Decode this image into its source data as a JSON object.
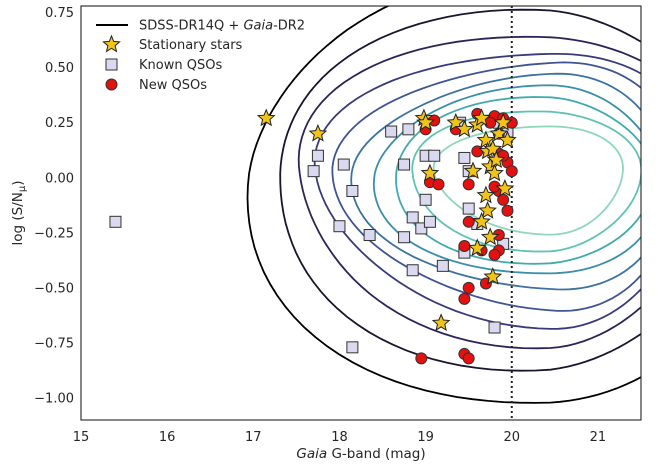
{
  "chart_data": {
    "type": "scatter",
    "xlabel": {
      "italic": "Gaia",
      "rest": " G-band (mag)"
    },
    "ylabel": {
      "main": "log (S/N",
      "sub": "μ",
      "end": ")"
    },
    "xlim": [
      15.0,
      21.5
    ],
    "ylim": [
      -1.1,
      0.78
    ],
    "x_ticks": [
      15,
      16,
      17,
      18,
      19,
      20,
      21
    ],
    "y_ticks": [
      0.75,
      0.5,
      0.25,
      0.0,
      -0.25,
      -0.5,
      -0.75,
      -1.0
    ],
    "x_tick_labels": [
      "15",
      "16",
      "17",
      "18",
      "19",
      "20",
      "21"
    ],
    "y_tick_labels": [
      "0.75",
      "0.50",
      "0.25",
      "0.00",
      "−0.25",
      "−0.50",
      "−0.75",
      "−1.00"
    ],
    "vline": {
      "x": 20.0,
      "style": "dotted"
    },
    "grid": false,
    "legend": {
      "placement": "top-left",
      "entries": [
        {
          "parts": [
            "SDSS-DR14Q + ",
            "Gaia",
            "-DR2"
          ],
          "marker": "line"
        },
        {
          "parts": [
            "Stationary stars"
          ],
          "marker": "star"
        },
        {
          "parts": [
            "Known QSOs"
          ],
          "marker": "square"
        },
        {
          "parts": [
            "New QSOs"
          ],
          "marker": "circle"
        }
      ]
    },
    "contours": {
      "center": [
        20.45,
        0.02
      ],
      "levels": [
        {
          "rx": 1.35,
          "ry": 0.24,
          "color": "#8ed7bb"
        },
        {
          "rx": 1.65,
          "ry": 0.31,
          "color": "#5fc3b4"
        },
        {
          "rx": 1.85,
          "ry": 0.37,
          "color": "#40aaae"
        },
        {
          "rx": 2.05,
          "ry": 0.42,
          "color": "#3a8fa9"
        },
        {
          "rx": 2.25,
          "ry": 0.48,
          "color": "#3d72a0"
        },
        {
          "rx": 2.45,
          "ry": 0.55,
          "color": "#3f5593"
        },
        {
          "rx": 2.7,
          "ry": 0.61,
          "color": "#3a3a7a"
        },
        {
          "rx": 2.98,
          "ry": 0.69,
          "color": "#2c2457"
        },
        {
          "rx": 3.25,
          "ry": 0.8,
          "color": "#1a1430"
        },
        {
          "rx": 3.55,
          "ry": 0.96,
          "color": "#000000"
        }
      ]
    },
    "series": [
      {
        "name": "Stationary stars",
        "marker": "star",
        "color": "#f2c418",
        "points": [
          [
            17.15,
            0.27
          ],
          [
            17.75,
            0.2
          ],
          [
            18.98,
            0.27
          ],
          [
            19.0,
            0.25
          ],
          [
            19.05,
            0.02
          ],
          [
            19.35,
            0.25
          ],
          [
            19.45,
            0.22
          ],
          [
            19.55,
            0.03
          ],
          [
            19.6,
            0.24
          ],
          [
            19.65,
            0.27
          ],
          [
            19.7,
            0.17
          ],
          [
            19.72,
            0.12
          ],
          [
            19.75,
            0.05
          ],
          [
            19.78,
            0.13
          ],
          [
            19.8,
            0.02
          ],
          [
            19.85,
            0.2
          ],
          [
            19.9,
            0.25
          ],
          [
            19.95,
            0.17
          ],
          [
            19.7,
            -0.08
          ],
          [
            19.72,
            -0.15
          ],
          [
            19.65,
            -0.2
          ],
          [
            19.75,
            -0.27
          ],
          [
            19.6,
            -0.32
          ],
          [
            19.78,
            -0.45
          ],
          [
            19.18,
            -0.66
          ],
          [
            19.82,
            0.08
          ],
          [
            19.92,
            -0.05
          ]
        ]
      },
      {
        "name": "Known QSOs",
        "marker": "square",
        "color": "#dad9ef",
        "points": [
          [
            15.4,
            -0.2
          ],
          [
            17.7,
            0.03
          ],
          [
            17.75,
            0.1
          ],
          [
            18.05,
            0.06
          ],
          [
            18.15,
            -0.06
          ],
          [
            18.0,
            -0.22
          ],
          [
            18.35,
            -0.26
          ],
          [
            18.15,
            -0.77
          ],
          [
            18.6,
            0.21
          ],
          [
            18.75,
            0.06
          ],
          [
            18.8,
            0.22
          ],
          [
            18.75,
            -0.27
          ],
          [
            18.85,
            -0.18
          ],
          [
            18.95,
            -0.23
          ],
          [
            18.85,
            -0.42
          ],
          [
            19.0,
            0.1
          ],
          [
            19.1,
            0.1
          ],
          [
            19.0,
            -0.1
          ],
          [
            19.05,
            -0.2
          ],
          [
            19.2,
            -0.4
          ],
          [
            19.45,
            0.09
          ],
          [
            19.5,
            0.03
          ],
          [
            19.5,
            -0.14
          ],
          [
            19.6,
            -0.21
          ],
          [
            19.45,
            -0.34
          ],
          [
            19.8,
            -0.68
          ],
          [
            19.9,
            -0.3
          ],
          [
            19.95,
            0.21
          ],
          [
            19.85,
            0.25
          ],
          [
            19.4,
            0.25
          ]
        ]
      },
      {
        "name": "New QSOs",
        "marker": "circle",
        "color": "#e51010",
        "points": [
          [
            19.0,
            0.22
          ],
          [
            19.1,
            0.26
          ],
          [
            19.05,
            -0.02
          ],
          [
            19.15,
            -0.03
          ],
          [
            19.35,
            0.22
          ],
          [
            19.5,
            -0.03
          ],
          [
            19.5,
            -0.2
          ],
          [
            19.45,
            -0.31
          ],
          [
            19.5,
            -0.5
          ],
          [
            19.45,
            -0.55
          ],
          [
            18.95,
            -0.82
          ],
          [
            19.45,
            -0.8
          ],
          [
            19.5,
            -0.82
          ],
          [
            19.6,
            0.29
          ],
          [
            19.6,
            0.12
          ],
          [
            19.65,
            -0.33
          ],
          [
            19.7,
            -0.48
          ],
          [
            19.8,
            0.28
          ],
          [
            19.85,
            0.2
          ],
          [
            19.9,
            0.27
          ],
          [
            19.85,
            0.11
          ],
          [
            19.95,
            0.07
          ],
          [
            20.0,
            0.03
          ],
          [
            19.85,
            -0.06
          ],
          [
            19.9,
            -0.1
          ],
          [
            19.95,
            -0.15
          ],
          [
            19.85,
            -0.26
          ],
          [
            19.85,
            -0.33
          ],
          [
            19.8,
            -0.35
          ],
          [
            19.8,
            -0.04
          ],
          [
            19.9,
            0.1
          ],
          [
            20.0,
            0.25
          ],
          [
            19.75,
            0.25
          ]
        ]
      }
    ]
  }
}
